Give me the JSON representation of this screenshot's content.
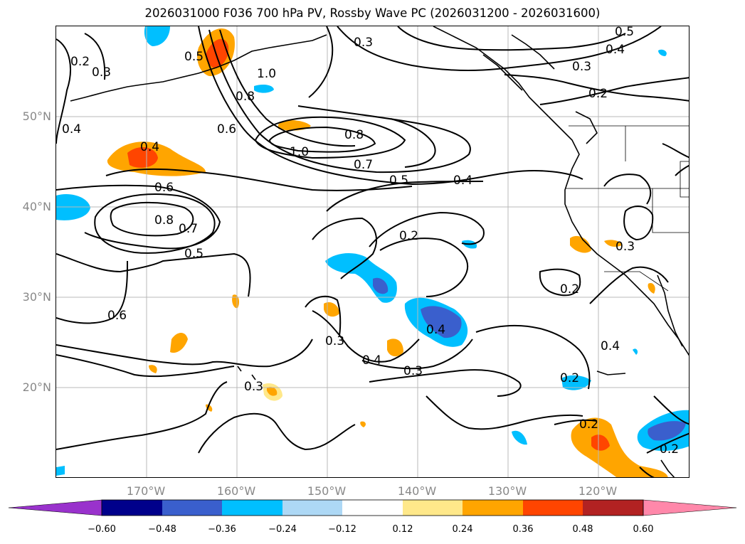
{
  "title": "2026031000 F036 700 hPa PV, Rossby Wave PC (2026031200 - 2026031600)",
  "latitude_labels": [
    "50°N",
    "40°N",
    "30°N",
    "20°N"
  ],
  "longitude_labels": [
    "170°W",
    "160°W",
    "150°W",
    "140°W",
    "130°W",
    "120°W"
  ],
  "colorbar": {
    "tick_labels": [
      "−0.60",
      "−0.48",
      "−0.36",
      "−0.24",
      "−0.12",
      "0.12",
      "0.24",
      "0.36",
      "0.48",
      "0.60"
    ],
    "colors": [
      "#9932cc",
      "#00008b",
      "#3a5fcd",
      "#00bfff",
      "#add8f5",
      "#ffffff",
      "#ffe88a",
      "#ffa500",
      "#ff4500",
      "#b22222",
      "#ff88aa"
    ]
  },
  "contour_labels": [
    "0.5",
    "0.3",
    "0.5",
    "0.4",
    "0.3",
    "0.2",
    "0.3",
    "0.2",
    "1.0",
    "0.8",
    "0.4",
    "0.6",
    "0.8",
    "1.0",
    "0.7",
    "0.5",
    "0.4",
    "0.6",
    "0.8",
    "0.7",
    "0.5",
    "0.4",
    "0.2",
    "0.3",
    "0.6",
    "0.3",
    "0.4",
    "0.3",
    "0.4",
    "0.2",
    "0.4",
    "0.2",
    "0.2",
    "0.3",
    "0.2"
  ]
}
